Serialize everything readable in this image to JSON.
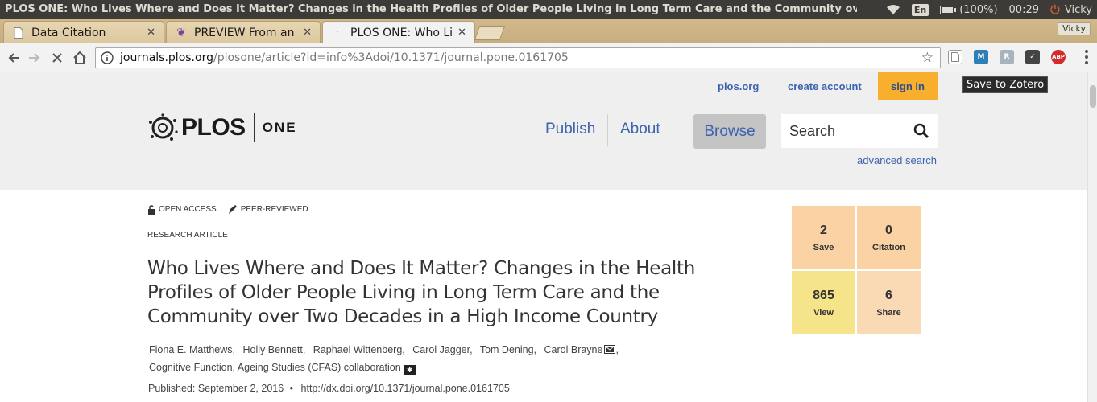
{
  "system_bar": {
    "window_title": "PLOS ONE: Who Lives Where and Does It Matter? Changes in the Health Profiles of Older People Living in Long Term Care and the Community over Two Deca",
    "language": "En",
    "battery": "(100%)",
    "time": "00:29",
    "user": "Vicky"
  },
  "tabs": [
    {
      "label": "Data Citation",
      "active": false
    },
    {
      "label": "PREVIEW From an A",
      "active": false
    },
    {
      "label": "PLOS ONE: Who Liv",
      "active": true
    }
  ],
  "profile_badge": "Vicky",
  "toolbar": {
    "url_host": "journals.plos.org",
    "url_path": "/plosone/article?id=info%3Adoi/10.1371/journal.pone.0161705",
    "tooltip": "Save to Zotero"
  },
  "site": {
    "top_links": {
      "plos_org": "plos.org",
      "create_account": "create account",
      "sign_in": "sign in"
    },
    "logo": {
      "name": "PLOS",
      "journal": "ONE"
    },
    "nav": {
      "publish": "Publish",
      "about": "About",
      "browse": "Browse"
    },
    "search": {
      "placeholder": "Search",
      "advanced": "advanced search"
    }
  },
  "article": {
    "open_access": "OPEN ACCESS",
    "peer_reviewed": "PEER-REVIEWED",
    "type": "RESEARCH ARTICLE",
    "title": "Who Lives Where and Does It Matter? Changes in the Health Profiles of Older People Living in Long Term Care and the Community over Two Decades in a High Income Country",
    "authors": [
      "Fiona E. Matthews,",
      "Holly Bennett,",
      "Raphael Wittenberg,",
      "Carol Jagger,",
      "Tom Dening,",
      "Carol Brayne"
    ],
    "collaboration": "Cognitive Function, Ageing Studies (CFAS) collaboration",
    "published": "Published: September 2, 2016",
    "doi": "http://dx.doi.org/10.1371/journal.pone.0161705"
  },
  "metrics": [
    {
      "value": "2",
      "label": "Save",
      "color": "#fbd2a4"
    },
    {
      "value": "0",
      "label": "Citation",
      "color": "#fbd2a4"
    },
    {
      "value": "865",
      "label": "View",
      "color": "#f5e48a"
    },
    {
      "value": "6",
      "label": "Share",
      "color": "#fadab5"
    }
  ],
  "colors": {
    "link_blue": "#3c63af",
    "sign_in_bg": "#f8af2d",
    "header_bg": "#efefef"
  }
}
